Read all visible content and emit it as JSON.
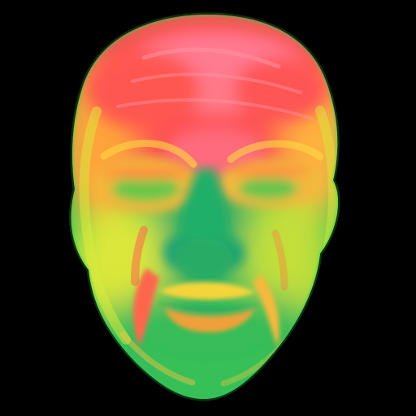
{
  "image": {
    "subject": "thermal-face",
    "palette": {
      "background": "#000000",
      "cold_green": "#18b44a",
      "cool_green": "#36c93c",
      "mid_yellow_green": "#9bd32d",
      "warm_yellow": "#e5ea2a",
      "warm_orange": "#ff9d2a",
      "hot_red": "#ff3f3f",
      "hottest_pink": "#ff7a8c",
      "deep_teal": "#0e9c68"
    }
  }
}
